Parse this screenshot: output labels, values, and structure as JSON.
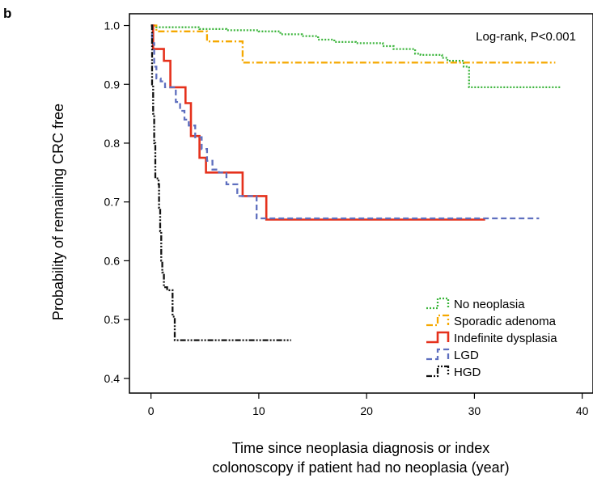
{
  "panel_label": "b",
  "chart_data": {
    "type": "line",
    "subtype": "kaplan-meier step",
    "title": "",
    "xlabel_lines": [
      "Time since neoplasia diagnosis or index",
      "colonoscopy if patient had no neoplasia (year)"
    ],
    "ylabel": "Probability of remaining CRC free",
    "xlim": [
      -2,
      41
    ],
    "ylim": [
      0.375,
      1.02
    ],
    "xticks": [
      0,
      10,
      20,
      30,
      40
    ],
    "yticks": [
      1.0,
      0.9,
      0.8,
      0.7,
      0.6,
      0.5,
      0.4
    ],
    "ytick_labels": [
      "1.0",
      "0.9",
      "0.8",
      "0.7",
      "0.6",
      "0.5",
      "0.4"
    ],
    "grid": false,
    "legend_position": "bottom-right",
    "annotation": "Log-rank, P<0.001",
    "series": [
      {
        "name": "No neoplasia",
        "color": "#3cb53c",
        "dash": "dotted",
        "points": [
          [
            0,
            1.0
          ],
          [
            0.5,
            0.997
          ],
          [
            3.5,
            0.997
          ],
          [
            4.5,
            0.994
          ],
          [
            7,
            0.992
          ],
          [
            10,
            0.99
          ],
          [
            12,
            0.985
          ],
          [
            14,
            0.982
          ],
          [
            15.5,
            0.976
          ],
          [
            17,
            0.972
          ],
          [
            19,
            0.97
          ],
          [
            21.5,
            0.965
          ],
          [
            22.5,
            0.96
          ],
          [
            24.5,
            0.952
          ],
          [
            25,
            0.95
          ],
          [
            27,
            0.945
          ],
          [
            27.5,
            0.94
          ],
          [
            29,
            0.93
          ],
          [
            29.5,
            0.895
          ],
          [
            38,
            0.893
          ]
        ]
      },
      {
        "name": "Sporadic adenoma",
        "color": "#f5a800",
        "dash": "dashdot",
        "points": [
          [
            0,
            1.0
          ],
          [
            0.5,
            0.99
          ],
          [
            5,
            0.99
          ],
          [
            5.2,
            0.973
          ],
          [
            8.3,
            0.973
          ],
          [
            8.5,
            0.937
          ],
          [
            37.5,
            0.937
          ]
        ]
      },
      {
        "name": "Indefinite dysplasia",
        "color": "#e5311c",
        "dash": "solid",
        "points": [
          [
            0,
            1.0
          ],
          [
            0.2,
            0.96
          ],
          [
            1.2,
            0.94
          ],
          [
            1.8,
            0.895
          ],
          [
            3.2,
            0.868
          ],
          [
            3.7,
            0.812
          ],
          [
            4.5,
            0.775
          ],
          [
            5.1,
            0.75
          ],
          [
            8.5,
            0.71
          ],
          [
            10.7,
            0.67
          ],
          [
            31,
            0.67
          ]
        ]
      },
      {
        "name": "LGD",
        "color": "#5e6fbf",
        "dash": "dashed",
        "points": [
          [
            0,
            1.0
          ],
          [
            0.1,
            0.97
          ],
          [
            0.3,
            0.93
          ],
          [
            0.5,
            0.91
          ],
          [
            0.9,
            0.905
          ],
          [
            1.3,
            0.895
          ],
          [
            2.3,
            0.87
          ],
          [
            2.7,
            0.855
          ],
          [
            3.1,
            0.84
          ],
          [
            3.5,
            0.83
          ],
          [
            4.1,
            0.81
          ],
          [
            4.7,
            0.79
          ],
          [
            5.2,
            0.77
          ],
          [
            5.7,
            0.755
          ],
          [
            6.3,
            0.75
          ],
          [
            7,
            0.73
          ],
          [
            8,
            0.71
          ],
          [
            9.8,
            0.672
          ],
          [
            36,
            0.672
          ]
        ]
      },
      {
        "name": "HGD",
        "color": "#111111",
        "dash": "dashdotdot",
        "points": [
          [
            0,
            1.0
          ],
          [
            0.1,
            0.9
          ],
          [
            0.2,
            0.85
          ],
          [
            0.3,
            0.8
          ],
          [
            0.4,
            0.74
          ],
          [
            0.7,
            0.73
          ],
          [
            0.75,
            0.69
          ],
          [
            0.85,
            0.65
          ],
          [
            0.95,
            0.6
          ],
          [
            1.05,
            0.58
          ],
          [
            1.2,
            0.555
          ],
          [
            1.5,
            0.55
          ],
          [
            2.0,
            0.505
          ],
          [
            2.2,
            0.465
          ],
          [
            13,
            0.465
          ]
        ]
      }
    ]
  }
}
